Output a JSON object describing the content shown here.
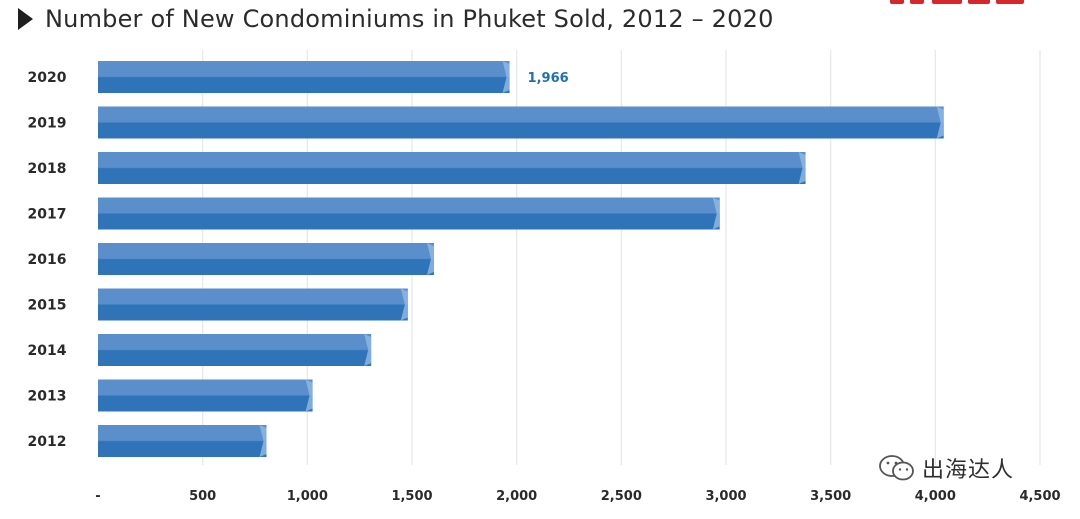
{
  "title": "Number of New Condominiums in Phuket Sold, 2012 – 2020",
  "watermark": "出海达人",
  "colors": {
    "bar_top": "#5a8fcc",
    "bar_bottom": "#2f73b9",
    "bar_cap": "#8eb6e0",
    "label": "#1f6fb8",
    "grid": "#e6e6e6",
    "axis_text": "#2a2a2a",
    "brand": "#d9262b"
  },
  "chart_data": {
    "type": "bar",
    "orientation": "horizontal",
    "categories": [
      "2020",
      "2019",
      "2018",
      "2017",
      "2016",
      "2015",
      "2014",
      "2013",
      "2012"
    ],
    "values": [
      1966,
      4040,
      3380,
      2970,
      1605,
      1480,
      1305,
      1025,
      805
    ],
    "data_labels": [
      "1,966",
      "",
      "",
      "",
      "",
      "",
      "",
      "",
      ""
    ],
    "xlim": [
      0,
      4500
    ],
    "xticks": [
      0,
      500,
      1000,
      1500,
      2000,
      2500,
      3000,
      3500,
      4000,
      4500
    ],
    "xtick_labels": [
      "-",
      "500",
      "1,000",
      "1,500",
      "2,000",
      "2,500",
      "3,000",
      "3,500",
      "4,000",
      "4,500"
    ],
    "grid": "vertical",
    "legend": "none",
    "xlabel": "",
    "ylabel": ""
  }
}
